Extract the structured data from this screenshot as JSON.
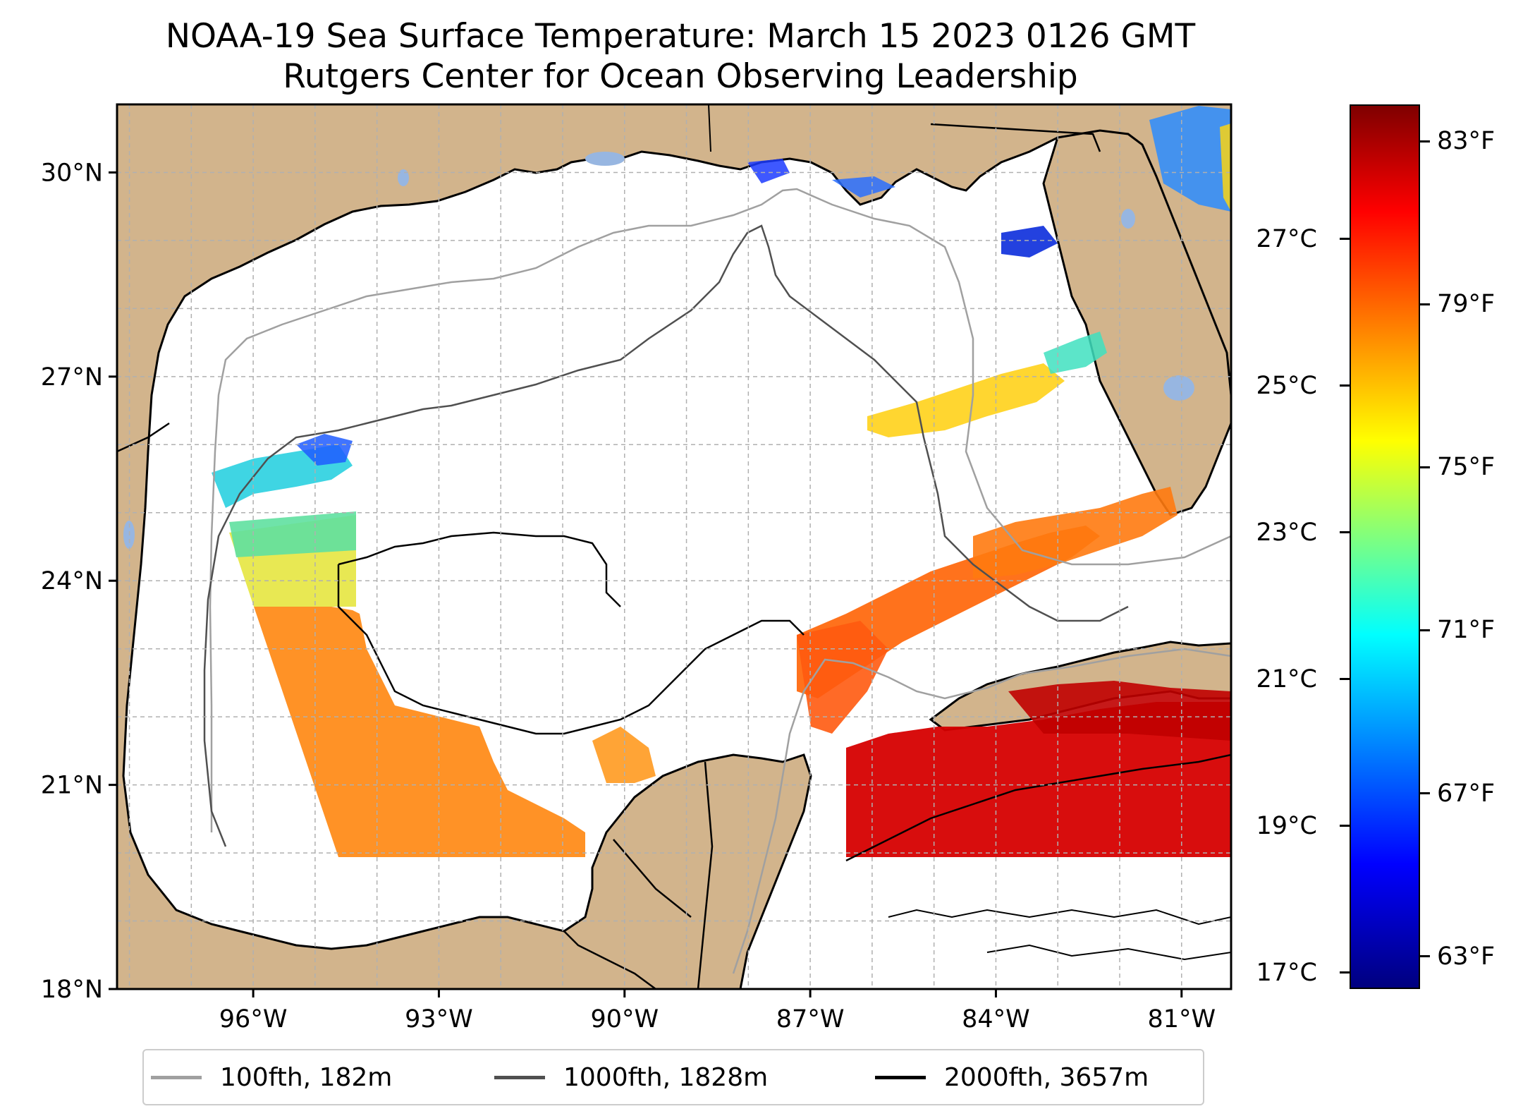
{
  "title_line1": "NOAA-19 Sea Surface Temperature: March 15 2023 0126 GMT",
  "title_line2": "Rutgers Center for Ocean Observing Leadership",
  "map": {
    "lon_range": [
      -98.2,
      -80.2
    ],
    "lat_range": [
      18.0,
      31.0
    ],
    "lat_ticks": [
      {
        "value": 30,
        "label": "30°N"
      },
      {
        "value": 27,
        "label": "27°N"
      },
      {
        "value": 24,
        "label": "24°N"
      },
      {
        "value": 21,
        "label": "21°N"
      },
      {
        "value": 18,
        "label": "18°N"
      }
    ],
    "lon_ticks": [
      {
        "value": -96,
        "label": "96°W"
      },
      {
        "value": -93,
        "label": "93°W"
      },
      {
        "value": -90,
        "label": "90°W"
      },
      {
        "value": -87,
        "label": "87°W"
      },
      {
        "value": -84,
        "label": "84°W"
      },
      {
        "value": -81,
        "label": "81°W"
      }
    ],
    "gridlines": true,
    "colors": {
      "land": "#d2b48c",
      "lakes": "#97b6e1",
      "ocean": "#ffffff",
      "coastline": "#000000",
      "grid": "#b0b0b0"
    }
  },
  "legend": {
    "items": [
      {
        "label": "100fth, 182m",
        "color": "#a0a0a0"
      },
      {
        "label": "1000fth, 1828m",
        "color": "#505050"
      },
      {
        "label": "2000fth, 3657m",
        "color": "#000000"
      }
    ]
  },
  "colorbar": {
    "colormap": "jet",
    "range_f": [
      62.2,
      83.9
    ],
    "fahrenheit_ticks": [
      {
        "value": 83,
        "label": "83°F"
      },
      {
        "value": 79,
        "label": "79°F"
      },
      {
        "value": 75,
        "label": "75°F"
      },
      {
        "value": 71,
        "label": "71°F"
      },
      {
        "value": 67,
        "label": "67°F"
      },
      {
        "value": 63,
        "label": "63°F"
      }
    ],
    "celsius_ticks": [
      {
        "value": 27,
        "label": "27°C"
      },
      {
        "value": 25,
        "label": "25°C"
      },
      {
        "value": 23,
        "label": "23°C"
      },
      {
        "value": 21,
        "label": "21°C"
      },
      {
        "value": 19,
        "label": "19°C"
      },
      {
        "value": 17,
        "label": "17°C"
      }
    ]
  }
}
